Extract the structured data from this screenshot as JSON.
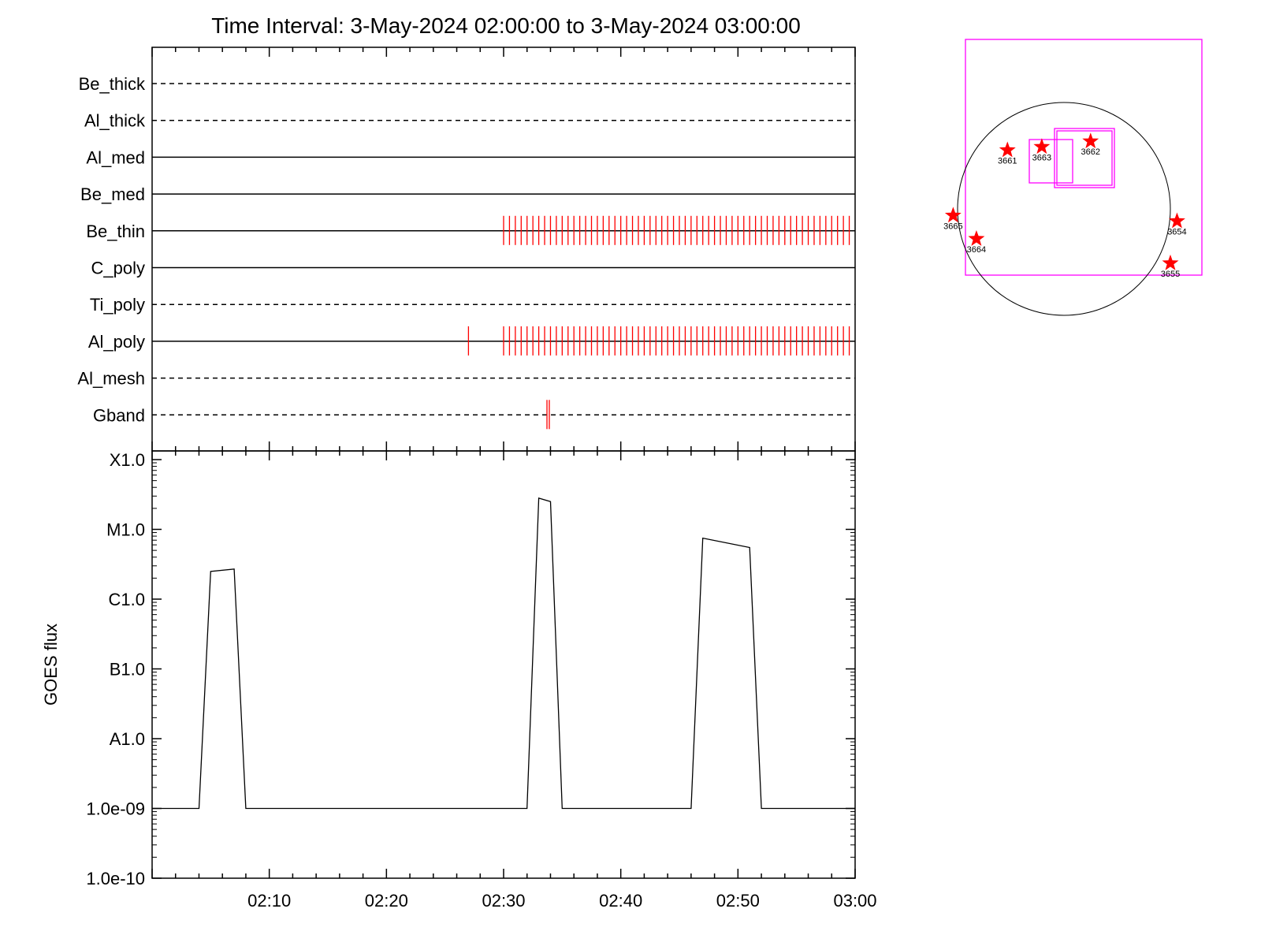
{
  "title": "Time Interval:  3-May-2024 02:00:00 to  3-May-2024 03:00:00",
  "colors": {
    "axis": "#000000",
    "marks": "#ff0000",
    "fov": "#ff00ff",
    "disk": "#000000"
  },
  "chart_data": [
    {
      "type": "timeline",
      "rows": [
        {
          "name": "Be_thick",
          "style": "dashed",
          "marks": []
        },
        {
          "name": "Al_thick",
          "style": "dashed",
          "marks": []
        },
        {
          "name": "Al_med",
          "style": "solid",
          "marks": []
        },
        {
          "name": "Be_med",
          "style": "solid",
          "marks": []
        },
        {
          "name": "Be_thin",
          "style": "solid",
          "marks_range": {
            "from": 30.0,
            "to": 59.9,
            "step": 0.5
          }
        },
        {
          "name": "C_poly",
          "style": "solid",
          "marks": []
        },
        {
          "name": "Ti_poly",
          "style": "dashed",
          "marks": []
        },
        {
          "name": "Al_poly",
          "style": "solid",
          "marks": [
            27.0
          ],
          "marks_range": {
            "from": 30.0,
            "to": 59.9,
            "step": 0.5
          }
        },
        {
          "name": "Al_mesh",
          "style": "dashed",
          "marks": []
        },
        {
          "name": "Gband",
          "style": "dashed",
          "marks": [
            33.7,
            33.9
          ]
        }
      ],
      "x_unit": "minutes after 02:00",
      "xlim": [
        0,
        60
      ]
    },
    {
      "type": "line",
      "ylabel": "GOES flux",
      "yscale": "log",
      "ylim": [
        1e-10,
        0.0001
      ],
      "yticks": [
        {
          "value": 1e-10,
          "label": "1.0e-10"
        },
        {
          "value": 1e-09,
          "label": "1.0e-09"
        },
        {
          "value": 1e-08,
          "label": "A1.0"
        },
        {
          "value": 1e-07,
          "label": "B1.0"
        },
        {
          "value": 1e-06,
          "label": "C1.0"
        },
        {
          "value": 1e-05,
          "label": "M1.0"
        },
        {
          "value": 0.0001,
          "label": "X1.0"
        }
      ],
      "xlim": [
        0,
        60
      ],
      "xticks": [
        {
          "value": 10,
          "label": "02:10"
        },
        {
          "value": 20,
          "label": "02:20"
        },
        {
          "value": 30,
          "label": "02:30"
        },
        {
          "value": 40,
          "label": "02:40"
        },
        {
          "value": 50,
          "label": "02:50"
        },
        {
          "value": 60,
          "label": "03:00"
        }
      ],
      "series": [
        {
          "x": [
            0,
            4,
            5,
            7,
            8,
            32,
            33,
            34,
            35,
            46,
            47,
            51,
            52,
            60
          ],
          "y": [
            1e-09,
            1e-09,
            2.5e-06,
            2.7e-06,
            1e-09,
            1e-09,
            2.8e-05,
            2.5e-05,
            1e-09,
            1e-09,
            7.5e-06,
            5.5e-06,
            1e-09,
            1e-09
          ]
        }
      ]
    },
    {
      "type": "disk_map",
      "regions": [
        {
          "label": "3661",
          "x": -510,
          "y": 530
        },
        {
          "label": "3663",
          "x": -200,
          "y": 560
        },
        {
          "label": "3662",
          "x": 240,
          "y": 610
        },
        {
          "label": "3665",
          "x": -1000,
          "y": -60
        },
        {
          "label": "3664",
          "x": -790,
          "y": -270
        },
        {
          "label": "3654",
          "x": 1020,
          "y": -110
        },
        {
          "label": "3655",
          "x": 960,
          "y": -490
        }
      ]
    }
  ]
}
